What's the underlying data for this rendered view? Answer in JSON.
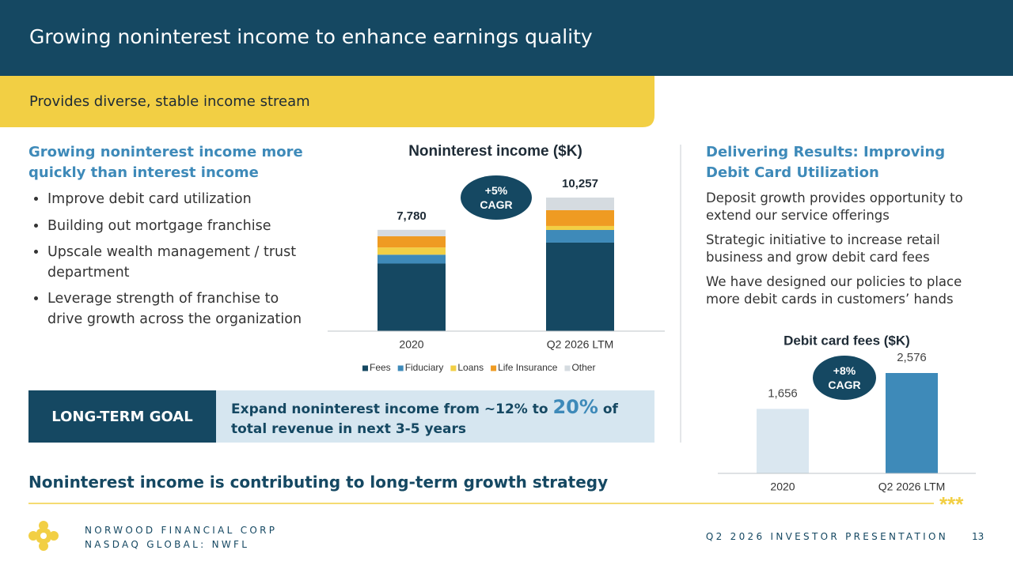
{
  "header": {
    "title": "Growing noninterest income to enhance earnings quality"
  },
  "banner": {
    "text": "Provides diverse, stable income stream"
  },
  "left": {
    "heading": "Growing noninterest income more quickly than interest income",
    "bullets": [
      "Improve debit card utilization",
      "Building out mortgage franchise",
      "Upscale wealth management / trust department",
      "Leverage strength of franchise to drive growth across the organization"
    ]
  },
  "right": {
    "heading": "Delivering Results: Improving Debit Card Utilization",
    "paragraphs": [
      "Deposit growth provides opportunity to extend our service offerings",
      "Strategic initiative to increase retail business and grow debit card fees",
      "We have designed our policies to place more debit cards in customers’ hands"
    ]
  },
  "goal": {
    "label": "LONG-TERM GOAL",
    "text_before": "Expand noninterest income from ~12% to",
    "highlight": "20%",
    "text_after": "of total revenue in next 3-5 years"
  },
  "statement": "Noninterest income is contributing to long-term growth strategy",
  "footer": {
    "company": "NORWOOD FINANCIAL CORP",
    "ticker": "NASDAQ GLOBAL: NWFL",
    "presentation": "Q2 2026 INVESTOR PRESENTATION",
    "page": "13"
  },
  "chart_data": [
    {
      "type": "stacked_bar",
      "title": "Noninterest income ($K)",
      "categories": [
        "2020",
        "Q2 2026 LTM"
      ],
      "series": [
        {
          "name": "Fees",
          "color": "#154862",
          "values": [
            5190,
            6800
          ]
        },
        {
          "name": "Fiduciary",
          "color": "#3e8ab9",
          "values": [
            680,
            970
          ]
        },
        {
          "name": "Loans",
          "color": "#f2cf44",
          "values": [
            555,
            305
          ]
        },
        {
          "name": "Life Insurance",
          "color": "#ef9b22",
          "values": [
            865,
            1215
          ]
        },
        {
          "name": "Other",
          "color": "#d5dbe0",
          "values": [
            490,
            967
          ]
        }
      ],
      "totals": [
        7780,
        10257
      ],
      "total_labels": [
        "7,780",
        "10,257"
      ],
      "annotation": "+5% CAGR"
    },
    {
      "type": "bar",
      "title": "Debit card fees ($K)",
      "categories": [
        "2020",
        "Q2 2026 LTM"
      ],
      "values": [
        1656,
        2576
      ],
      "value_labels": [
        "1,656",
        "2,576"
      ],
      "colors": [
        "#dae7f0",
        "#3e8ab9"
      ],
      "annotation": "+8% CAGR"
    }
  ]
}
